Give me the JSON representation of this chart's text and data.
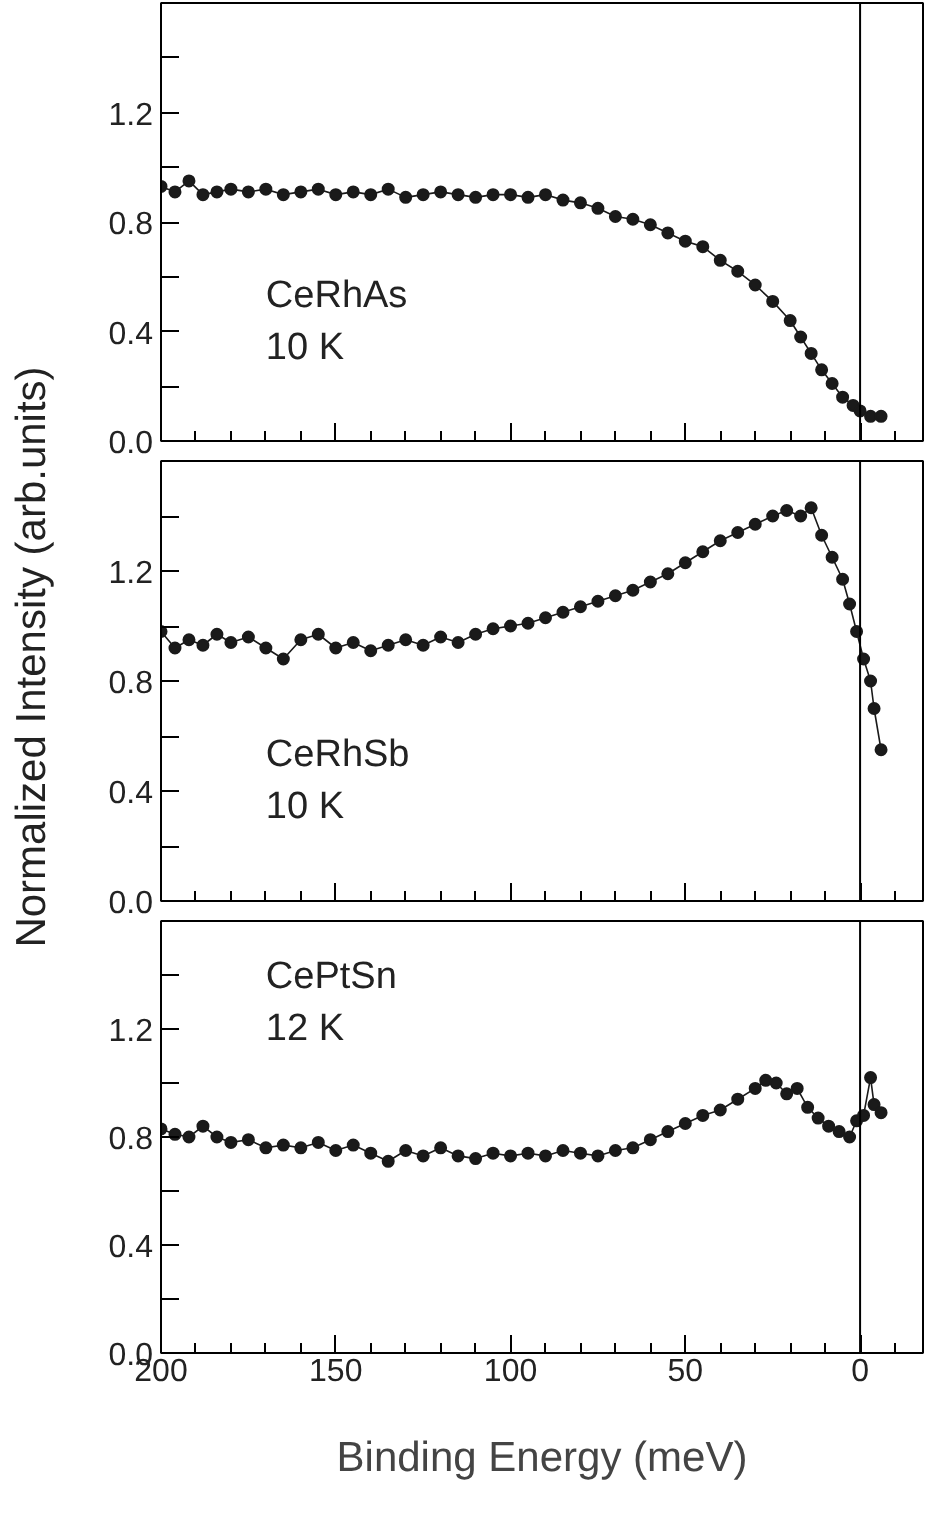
{
  "chart_data": [
    {
      "type": "line",
      "marker": "circle",
      "tick_labels": "y",
      "xlim": [
        200,
        -18
      ],
      "ylim": [
        0,
        1.6
      ],
      "xticks": [
        {
          "value": 200,
          "label": null
        },
        {
          "value": 150,
          "label": null
        },
        {
          "value": 100,
          "label": null
        },
        {
          "value": 50,
          "label": null
        },
        {
          "value": 0,
          "label": null
        }
      ],
      "yticks": [
        {
          "value": 0,
          "label": "0.0"
        },
        {
          "value": 0.2,
          "label": null
        },
        {
          "value": 0.4,
          "label": "0.4"
        },
        {
          "value": 0.6,
          "label": null
        },
        {
          "value": 0.8,
          "label": "0.8"
        },
        {
          "value": 1.0,
          "label": null
        },
        {
          "value": 1.2,
          "label": "1.2"
        },
        {
          "value": 1.4,
          "label": null
        }
      ],
      "ref_lines": [
        {
          "axis": "x",
          "value": 0,
          "color": "#000000"
        }
      ],
      "annotations": [
        "10 K"
      ],
      "series": [
        {
          "name": "CeRhAs",
          "color": "#1a1a1a",
          "x": [
            200,
            196,
            192,
            188,
            184,
            180,
            175,
            170,
            165,
            160,
            155,
            150,
            145,
            140,
            135,
            130,
            125,
            120,
            115,
            110,
            105,
            100,
            95,
            90,
            85,
            80,
            75,
            70,
            65,
            60,
            55,
            50,
            45,
            40,
            35,
            30,
            25,
            20,
            17,
            14,
            11,
            8,
            5,
            2,
            0,
            -3,
            -6
          ],
          "values": [
            0.93,
            0.91,
            0.95,
            0.9,
            0.91,
            0.92,
            0.91,
            0.92,
            0.9,
            0.91,
            0.92,
            0.9,
            0.91,
            0.9,
            0.92,
            0.89,
            0.9,
            0.91,
            0.9,
            0.89,
            0.9,
            0.9,
            0.89,
            0.9,
            0.88,
            0.87,
            0.85,
            0.82,
            0.81,
            0.79,
            0.76,
            0.73,
            0.71,
            0.66,
            0.62,
            0.57,
            0.51,
            0.44,
            0.38,
            0.32,
            0.26,
            0.21,
            0.16,
            0.13,
            0.11,
            0.09,
            0.09
          ]
        }
      ]
    },
    {
      "type": "line",
      "marker": "circle",
      "tick_labels": "y",
      "xlim": [
        200,
        -18
      ],
      "ylim": [
        0,
        1.6
      ],
      "xticks": [
        {
          "value": 200,
          "label": null
        },
        {
          "value": 150,
          "label": null
        },
        {
          "value": 100,
          "label": null
        },
        {
          "value": 50,
          "label": null
        },
        {
          "value": 0,
          "label": null
        }
      ],
      "yticks": [
        {
          "value": 0,
          "label": "0.0"
        },
        {
          "value": 0.2,
          "label": null
        },
        {
          "value": 0.4,
          "label": "0.4"
        },
        {
          "value": 0.6,
          "label": null
        },
        {
          "value": 0.8,
          "label": "0.8"
        },
        {
          "value": 1.0,
          "label": null
        },
        {
          "value": 1.2,
          "label": "1.2"
        },
        {
          "value": 1.4,
          "label": null
        }
      ],
      "ylabel": "Normalized Intensity (arb.units)",
      "ref_lines": [
        {
          "axis": "x",
          "value": 0,
          "color": "#000000"
        }
      ],
      "annotations": [
        "10 K"
      ],
      "series": [
        {
          "name": "CeRhSb",
          "color": "#1a1a1a",
          "x": [
            200,
            196,
            192,
            188,
            184,
            180,
            175,
            170,
            165,
            160,
            155,
            150,
            145,
            140,
            135,
            130,
            125,
            120,
            115,
            110,
            105,
            100,
            95,
            90,
            85,
            80,
            75,
            70,
            65,
            60,
            55,
            50,
            45,
            40,
            35,
            30,
            25,
            21,
            17,
            14,
            11,
            8,
            5,
            3,
            1,
            -1,
            -3,
            -4,
            -6
          ],
          "values": [
            0.98,
            0.92,
            0.95,
            0.93,
            0.97,
            0.94,
            0.96,
            0.92,
            0.88,
            0.95,
            0.97,
            0.92,
            0.94,
            0.91,
            0.93,
            0.95,
            0.93,
            0.96,
            0.94,
            0.97,
            0.99,
            1.0,
            1.01,
            1.03,
            1.05,
            1.07,
            1.09,
            1.11,
            1.13,
            1.16,
            1.19,
            1.23,
            1.27,
            1.31,
            1.34,
            1.37,
            1.4,
            1.42,
            1.4,
            1.43,
            1.33,
            1.25,
            1.17,
            1.08,
            0.98,
            0.88,
            0.8,
            0.7,
            0.55
          ]
        }
      ]
    },
    {
      "type": "line",
      "marker": "circle",
      "xlim": [
        200,
        -18
      ],
      "ylim": [
        0,
        1.6
      ],
      "xticks": [
        200,
        150,
        100,
        50,
        0
      ],
      "yticks": [
        {
          "value": 0,
          "label": "0.0"
        },
        {
          "value": 0.2,
          "label": null
        },
        {
          "value": 0.4,
          "label": "0.4"
        },
        {
          "value": 0.6,
          "label": null
        },
        {
          "value": 0.8,
          "label": "0.8"
        },
        {
          "value": 1.0,
          "label": null
        },
        {
          "value": 1.2,
          "label": "1.2"
        },
        {
          "value": 1.4,
          "label": null
        }
      ],
      "xlabel": "Binding Energy (meV)",
      "ref_lines": [
        {
          "axis": "x",
          "value": 0,
          "color": "#000000"
        }
      ],
      "annotations": [
        "12 K"
      ],
      "series": [
        {
          "name": "CePtSn",
          "color": "#1a1a1a",
          "x": [
            200,
            196,
            192,
            188,
            184,
            180,
            175,
            170,
            165,
            160,
            155,
            150,
            145,
            140,
            135,
            130,
            125,
            120,
            115,
            110,
            105,
            100,
            95,
            90,
            85,
            80,
            75,
            70,
            65,
            60,
            55,
            50,
            45,
            40,
            35,
            30,
            27,
            24,
            21,
            18,
            15,
            12,
            9,
            6,
            3,
            1,
            -1,
            -3,
            -4,
            -6
          ],
          "values": [
            0.83,
            0.81,
            0.8,
            0.84,
            0.8,
            0.78,
            0.79,
            0.76,
            0.77,
            0.76,
            0.78,
            0.75,
            0.77,
            0.74,
            0.71,
            0.75,
            0.73,
            0.76,
            0.73,
            0.72,
            0.74,
            0.73,
            0.74,
            0.73,
            0.75,
            0.74,
            0.73,
            0.75,
            0.76,
            0.79,
            0.82,
            0.85,
            0.88,
            0.9,
            0.94,
            0.98,
            1.01,
            1.0,
            0.96,
            0.98,
            0.91,
            0.87,
            0.84,
            0.82,
            0.8,
            0.86,
            0.88,
            1.02,
            0.92,
            0.89
          ]
        }
      ]
    }
  ]
}
